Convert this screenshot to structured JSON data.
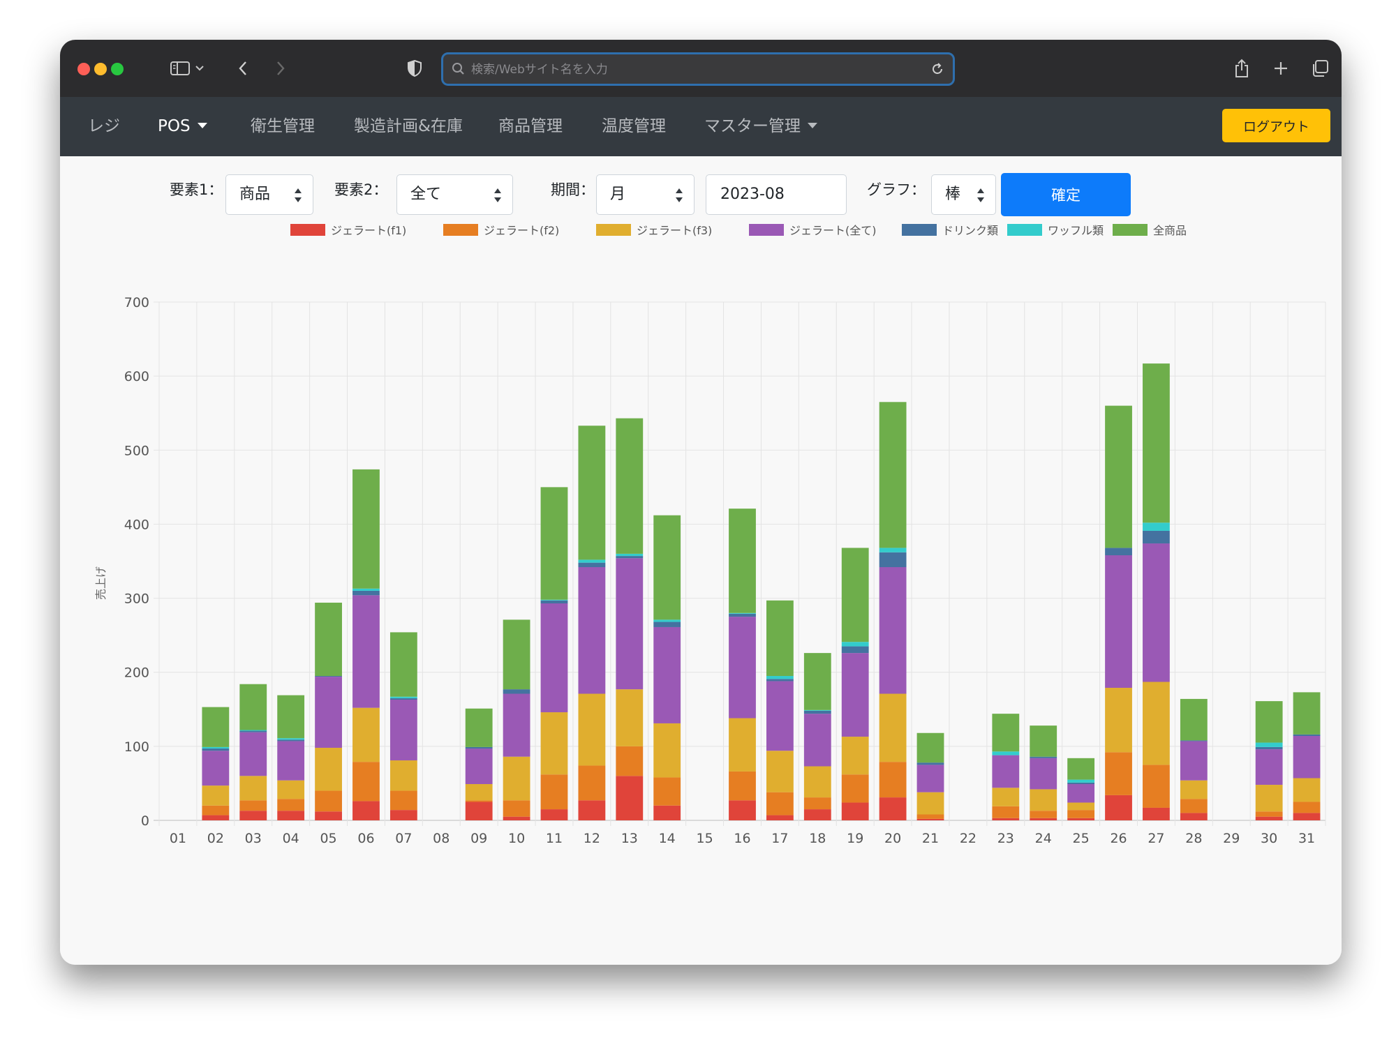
{
  "browser": {
    "search_placeholder": "検索/Webサイト名を入力"
  },
  "navbar": {
    "items": [
      {
        "label": "レジ",
        "active": false,
        "dropdown": false
      },
      {
        "label": "POS",
        "active": true,
        "dropdown": true
      },
      {
        "label": "衛生管理",
        "active": false,
        "dropdown": false
      },
      {
        "label": "製造計画&在庫",
        "active": false,
        "dropdown": false
      },
      {
        "label": "商品管理",
        "active": false,
        "dropdown": false
      },
      {
        "label": "温度管理",
        "active": false,
        "dropdown": false
      },
      {
        "label": "マスター管理",
        "active": false,
        "dropdown": true
      }
    ],
    "logout_label": "ログアウト"
  },
  "filters": {
    "element1_label": "要素1：",
    "element1_value": "商品",
    "element2_label": "要素2：",
    "element2_value": "全て",
    "period_label": "期間：",
    "period_value": "月",
    "date_value": "2023-08",
    "graph_label": "グラフ：",
    "graph_value": "棒",
    "confirm_label": "確定"
  },
  "chart_data": {
    "type": "bar",
    "stacked": true,
    "ylabel": "売上げ",
    "ylim": [
      0,
      700
    ],
    "yticks": [
      0,
      100,
      200,
      300,
      400,
      500,
      600,
      700
    ],
    "grid": true,
    "legend_position": "top",
    "categories": [
      "01",
      "02",
      "03",
      "04",
      "05",
      "06",
      "07",
      "08",
      "09",
      "10",
      "11",
      "12",
      "13",
      "14",
      "15",
      "16",
      "17",
      "18",
      "19",
      "20",
      "21",
      "22",
      "23",
      "24",
      "25",
      "26",
      "27",
      "28",
      "29",
      "30",
      "31"
    ],
    "series": [
      {
        "name": "ジェラート(f1)",
        "color": "#e0443a",
        "values": [
          0,
          7,
          13,
          13,
          12,
          26,
          14,
          0,
          25,
          5,
          15,
          27,
          60,
          20,
          0,
          27,
          7,
          15,
          24,
          31,
          2,
          0,
          3,
          3,
          3,
          34,
          17,
          10,
          0,
          5,
          10
        ]
      },
      {
        "name": "ジェラート(f2)",
        "color": "#e67e22",
        "values": [
          0,
          13,
          14,
          16,
          28,
          53,
          26,
          0,
          2,
          22,
          47,
          47,
          40,
          38,
          0,
          39,
          31,
          16,
          38,
          48,
          6,
          0,
          16,
          10,
          11,
          58,
          58,
          19,
          0,
          7,
          15
        ]
      },
      {
        "name": "ジェラート(f3)",
        "color": "#e0ae2f",
        "values": [
          0,
          27,
          33,
          25,
          58,
          73,
          41,
          0,
          22,
          59,
          84,
          97,
          77,
          73,
          0,
          72,
          56,
          42,
          51,
          92,
          30,
          0,
          25,
          29,
          10,
          87,
          112,
          25,
          0,
          36,
          32
        ]
      },
      {
        "name": "ジェラート(全て)",
        "color": "#9a59b5",
        "values": [
          0,
          47,
          59,
          53,
          96,
          152,
          82,
          0,
          48,
          85,
          147,
          171,
          177,
          130,
          0,
          137,
          94,
          71,
          113,
          171,
          37,
          0,
          44,
          42,
          25,
          179,
          187,
          53,
          0,
          48,
          57
        ]
      },
      {
        "name": "ドリンク類",
        "color": "#4472a0",
        "values": [
          0,
          3,
          2,
          2,
          1,
          6,
          2,
          0,
          2,
          6,
          4,
          6,
          3,
          7,
          0,
          4,
          3,
          4,
          9,
          20,
          3,
          0,
          0,
          2,
          2,
          10,
          17,
          1,
          0,
          3,
          2
        ]
      },
      {
        "name": "ワッフル類",
        "color": "#33cccc",
        "values": [
          0,
          2,
          1,
          2,
          0,
          3,
          2,
          0,
          0,
          0,
          1,
          4,
          3,
          3,
          0,
          1,
          4,
          1,
          6,
          6,
          0,
          0,
          5,
          0,
          4,
          0,
          11,
          0,
          0,
          6,
          0
        ]
      },
      {
        "name": "全商品",
        "color": "#6eae4b",
        "values": [
          0,
          54,
          62,
          58,
          99,
          161,
          87,
          0,
          52,
          94,
          152,
          181,
          183,
          141,
          0,
          141,
          102,
          77,
          127,
          197,
          40,
          0,
          51,
          42,
          29,
          192,
          215,
          56,
          0,
          56,
          57
        ]
      }
    ]
  }
}
